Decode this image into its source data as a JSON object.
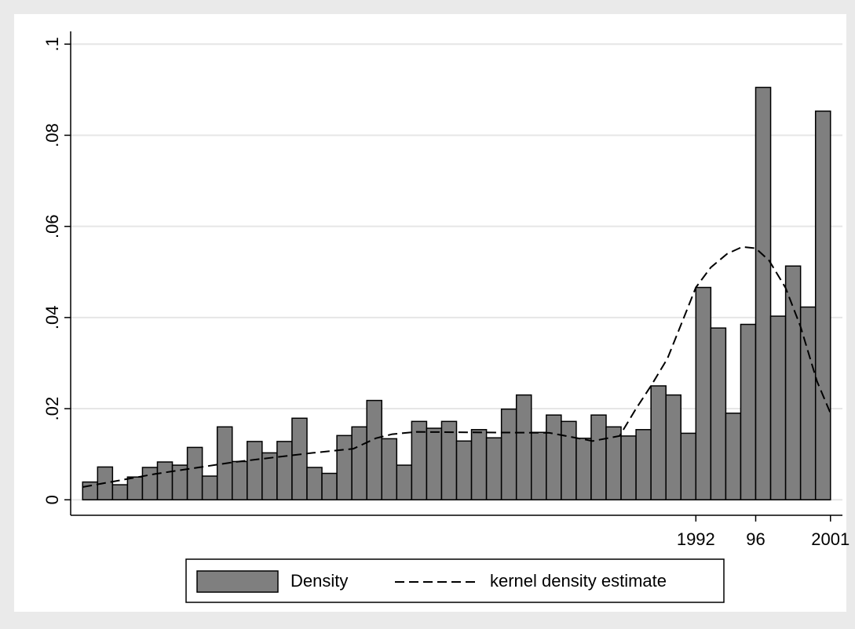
{
  "chart_data": {
    "type": "histogram",
    "bins": [
      1951,
      1952,
      1953,
      1954,
      1955,
      1956,
      1957,
      1958,
      1959,
      1960,
      1961,
      1962,
      1963,
      1964,
      1965,
      1966,
      1967,
      1968,
      1969,
      1970,
      1971,
      1972,
      1973,
      1974,
      1975,
      1976,
      1977,
      1978,
      1979,
      1980,
      1981,
      1982,
      1983,
      1984,
      1985,
      1986,
      1987,
      1988,
      1989,
      1990,
      1991,
      1992,
      1993,
      1994,
      1995,
      1996,
      1997,
      1998,
      1999,
      2000,
      2001
    ],
    "values": [
      0.0039,
      0.0072,
      0.0033,
      0.005,
      0.0071,
      0.0083,
      0.0076,
      0.0115,
      0.0052,
      0.016,
      0.0084,
      0.0128,
      0.0103,
      0.0128,
      0.0179,
      0.0071,
      0.0058,
      0.0141,
      0.016,
      0.0218,
      0.0134,
      0.0076,
      0.0172,
      0.0157,
      0.0172,
      0.0129,
      0.0154,
      0.0136,
      0.0199,
      0.023,
      0.0148,
      0.0186,
      0.0172,
      0.0135,
      0.0186,
      0.016,
      0.014,
      0.0154,
      0.025,
      0.023,
      0.0146,
      0.0466,
      0.0377,
      0.019,
      0.0385,
      0.0905,
      0.0403,
      0.0513,
      0.0423,
      0.0853
    ],
    "name": "Density",
    "color": "#7f7f7f",
    "series": [
      {
        "name": "kernel density estimate",
        "color": "#000000",
        "dash": true,
        "x": [
          1951,
          1955.9,
          1961.2,
          1966.4,
          1969.1,
          1970.6,
          1971.7,
          1973.3,
          1976.9,
          1982.2,
          1985.1,
          1986.9,
          1988,
          1989,
          1990.1,
          1991.2,
          1992,
          1993,
          1994.1,
          1995.1,
          1996,
          1996.9,
          1998,
          1999,
          2000.1,
          2001
        ],
        "values": [
          0.0028,
          0.0057,
          0.0083,
          0.0103,
          0.0112,
          0.0135,
          0.0144,
          0.0149,
          0.0148,
          0.0147,
          0.0129,
          0.014,
          0.02,
          0.025,
          0.031,
          0.04,
          0.0466,
          0.051,
          0.054,
          0.0555,
          0.0552,
          0.0525,
          0.0465,
          0.038,
          0.026,
          0.019
        ]
      }
    ],
    "xlim": [
      1950.2,
      2001.8
    ],
    "xticks": [
      1992,
      {
        "value": 1996,
        "label": "96"
      },
      2001
    ],
    "ylim": [
      -0.0034,
      0.1028
    ],
    "yticks": [
      0,
      {
        "value": 0.02,
        "label": ".02"
      },
      {
        "value": 0.04,
        "label": ".04"
      },
      {
        "value": 0.06,
        "label": ".06"
      },
      {
        "value": 0.08,
        "label": ".08"
      },
      {
        "value": 0.1,
        "label": ".1"
      }
    ],
    "grid": true
  }
}
